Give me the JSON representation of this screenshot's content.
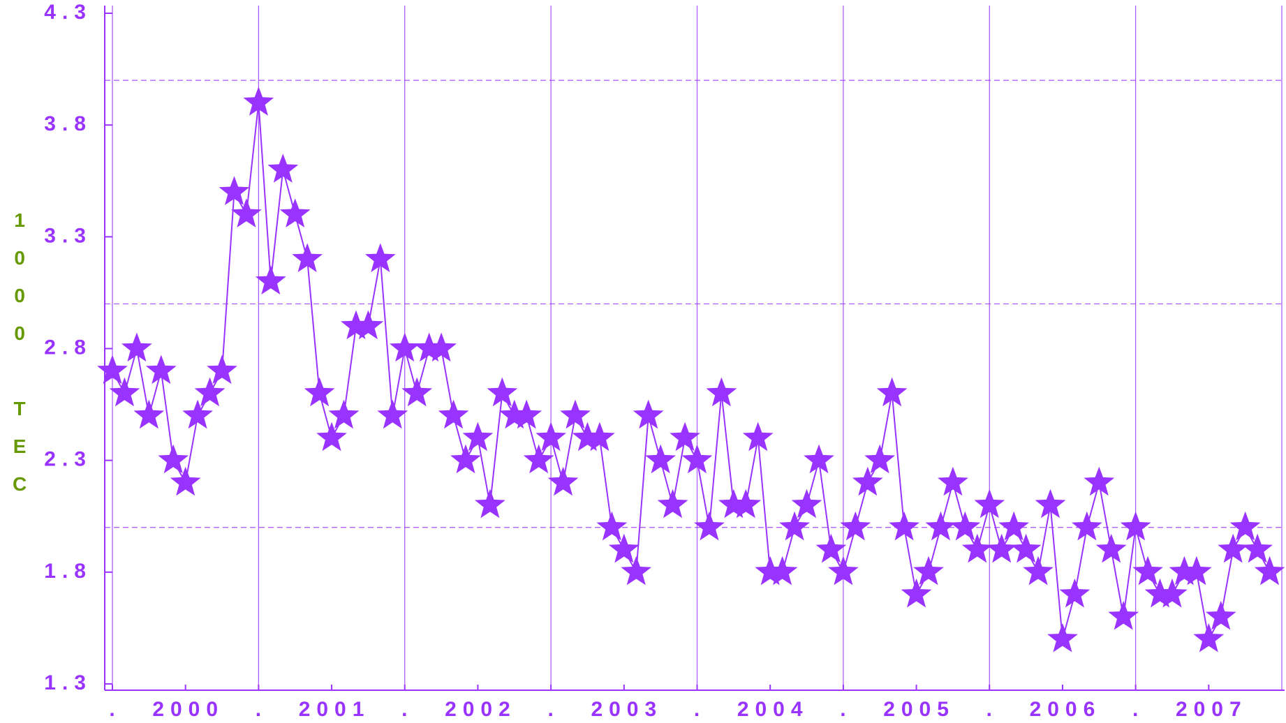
{
  "chart_data": {
    "type": "line",
    "y_label": "1000 TEC",
    "x": [
      2000,
      2000.0833,
      2000.1667,
      2000.25,
      2000.3333,
      2000.4167,
      2000.5,
      2000.5833,
      2000.6667,
      2000.75,
      2000.8333,
      2000.9167,
      2001,
      2001.0833,
      2001.1667,
      2001.25,
      2001.3333,
      2001.4167,
      2001.5,
      2001.5833,
      2001.6667,
      2001.75,
      2001.8333,
      2001.9167,
      2002,
      2002.0833,
      2002.1667,
      2002.25,
      2002.3333,
      2002.4167,
      2002.5,
      2002.5833,
      2002.6667,
      2002.75,
      2002.8333,
      2002.9167,
      2003,
      2003.0833,
      2003.1667,
      2003.25,
      2003.3333,
      2003.4167,
      2003.5,
      2003.5833,
      2003.6667,
      2003.75,
      2003.8333,
      2003.9167,
      2004,
      2004.0833,
      2004.1667,
      2004.25,
      2004.3333,
      2004.4167,
      2004.5,
      2004.5833,
      2004.6667,
      2004.75,
      2004.8333,
      2004.9167,
      2005,
      2005.0833,
      2005.1667,
      2005.25,
      2005.3333,
      2005.4167,
      2005.5,
      2005.5833,
      2005.6667,
      2005.75,
      2005.8333,
      2005.9167,
      2006,
      2006.0833,
      2006.1667,
      2006.25,
      2006.3333,
      2006.4167,
      2006.5,
      2006.5833,
      2006.6667,
      2006.75,
      2006.8333,
      2006.9167,
      2007,
      2007.0833,
      2007.1667,
      2007.25,
      2007.3333,
      2007.4167,
      2007.5,
      2007.5833,
      2007.6667,
      2007.75,
      2007.8333,
      2007.9167
    ],
    "series": [
      {
        "name": "TEC",
        "color": "#9933ff",
        "marker": "star",
        "values": [
          2.7,
          2.6,
          2.8,
          2.5,
          2.7,
          2.3,
          2.2,
          2.5,
          2.6,
          2.7,
          3.5,
          3.4,
          3.9,
          3.1,
          3.6,
          3.4,
          3.2,
          2.6,
          2.4,
          2.5,
          2.9,
          2.9,
          3.2,
          2.5,
          2.8,
          2.6,
          2.8,
          2.8,
          2.5,
          2.3,
          2.4,
          2.1,
          2.6,
          2.5,
          2.5,
          2.3,
          2.4,
          2.2,
          2.5,
          2.4,
          2.4,
          2.0,
          1.9,
          1.8,
          2.5,
          2.3,
          2.1,
          2.4,
          2.3,
          2.0,
          2.6,
          2.1,
          2.1,
          2.4,
          1.8,
          1.8,
          2.0,
          2.1,
          2.3,
          1.9,
          1.8,
          2.0,
          2.2,
          2.3,
          2.6,
          2.0,
          1.7,
          1.8,
          2.0,
          2.2,
          2.0,
          1.9,
          2.1,
          1.9,
          2.0,
          1.9,
          1.8,
          2.1,
          1.5,
          1.7,
          2.0,
          2.2,
          1.9,
          1.6,
          2.0,
          1.8,
          1.7,
          1.7,
          1.8,
          1.8,
          1.5,
          1.6,
          1.9,
          2.0,
          1.9,
          1.8
        ]
      }
    ],
    "xlim": [
      2000,
      2008
    ],
    "xticks": [
      {
        "value": 2000,
        "label": "."
      },
      {
        "value": 2000.5,
        "label": "2000"
      },
      {
        "value": 2001,
        "label": "."
      },
      {
        "value": 2001.5,
        "label": "2001"
      },
      {
        "value": 2002,
        "label": "."
      },
      {
        "value": 2002.5,
        "label": "2002"
      },
      {
        "value": 2003,
        "label": "."
      },
      {
        "value": 2003.5,
        "label": "2003"
      },
      {
        "value": 2004,
        "label": "."
      },
      {
        "value": 2004.5,
        "label": "2004"
      },
      {
        "value": 2005,
        "label": "."
      },
      {
        "value": 2005.5,
        "label": "2005"
      },
      {
        "value": 2006,
        "label": "."
      },
      {
        "value": 2006.5,
        "label": "2006"
      },
      {
        "value": 2007,
        "label": "."
      },
      {
        "value": 2007.5,
        "label": "2007"
      }
    ],
    "xgrid": [
      2000,
      2001,
      2002,
      2003,
      2004,
      2005,
      2006,
      2007,
      2008
    ],
    "ylim": [
      1.3,
      4.3
    ],
    "yticks": [
      1.3,
      1.8,
      2.3,
      2.8,
      3.3,
      3.8,
      4.3
    ],
    "ygrid": [
      2,
      3,
      4
    ],
    "grid_color": "#9933ff",
    "label_color": "#669900"
  }
}
